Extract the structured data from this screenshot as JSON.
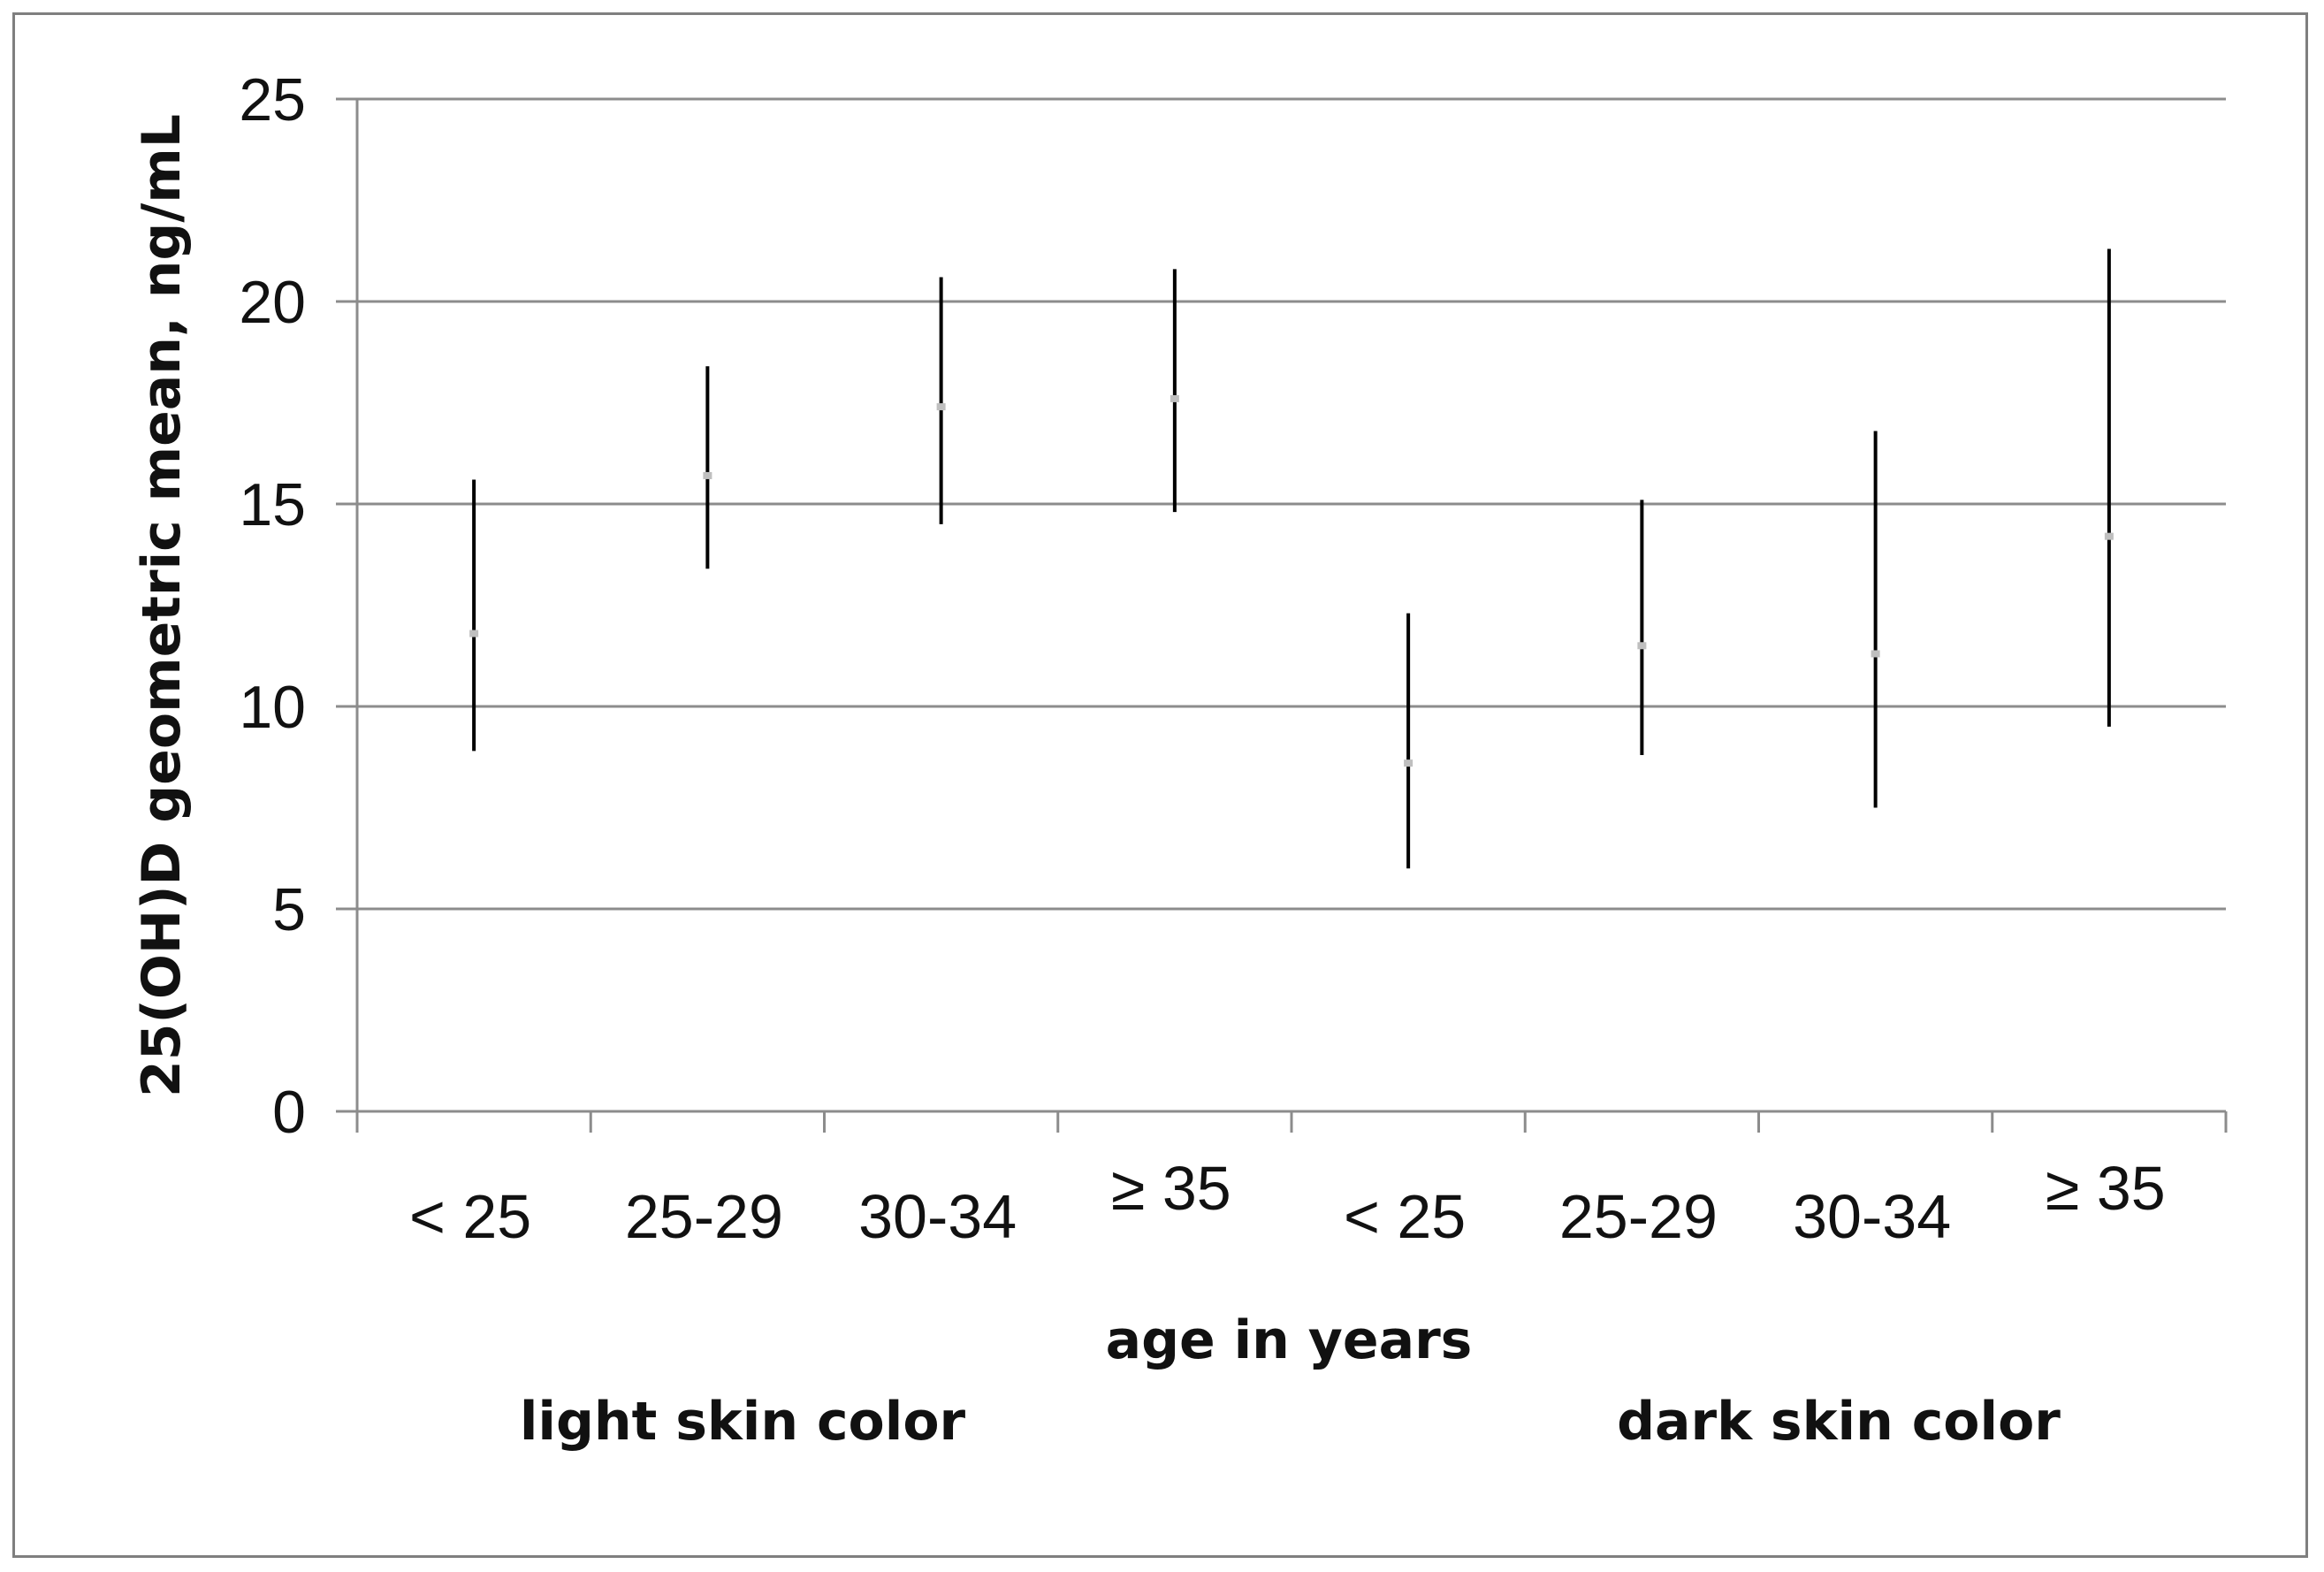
{
  "chart_data": {
    "type": "scatter",
    "subtype": "error-bar",
    "ylabel": "25(OH)D geometric mean, ng/mL",
    "xlabel": "age in years",
    "group_labels": [
      "light skin color",
      "dark skin color"
    ],
    "categories": [
      "< 25",
      "25-29",
      "30-34",
      "≥ 35",
      "< 25",
      "25-29",
      "30-34",
      "≥ 35"
    ],
    "ylim": [
      0,
      25
    ],
    "yticks": [
      "0",
      "5",
      "10",
      "15",
      "20",
      "25"
    ],
    "grid": true,
    "legend": "none",
    "points": [
      {
        "group": "light skin color",
        "category": "< 25",
        "mean": 11.8,
        "lower": 8.9,
        "upper": 15.6
      },
      {
        "group": "light skin color",
        "category": "25-29",
        "mean": 15.7,
        "lower": 13.4,
        "upper": 18.4
      },
      {
        "group": "light skin color",
        "category": "30-34",
        "mean": 17.4,
        "lower": 14.5,
        "upper": 20.6
      },
      {
        "group": "light skin color",
        "category": "≥ 35",
        "mean": 17.6,
        "lower": 14.8,
        "upper": 20.8
      },
      {
        "group": "dark skin color",
        "category": "< 25",
        "mean": 8.6,
        "lower": 6.0,
        "upper": 12.3
      },
      {
        "group": "dark skin color",
        "category": "25-29",
        "mean": 11.5,
        "lower": 8.8,
        "upper": 15.1
      },
      {
        "group": "dark skin color",
        "category": "30-34",
        "mean": 11.3,
        "lower": 7.5,
        "upper": 16.8
      },
      {
        "group": "dark skin color",
        "category": "≥ 35",
        "mean": 14.2,
        "lower": 9.5,
        "upper": 21.3
      }
    ],
    "colors": {
      "gridline": "#8c8c8c",
      "errorbar": "#000000",
      "marker": "#bfbfbf",
      "axis": "#8c8c8c"
    }
  }
}
